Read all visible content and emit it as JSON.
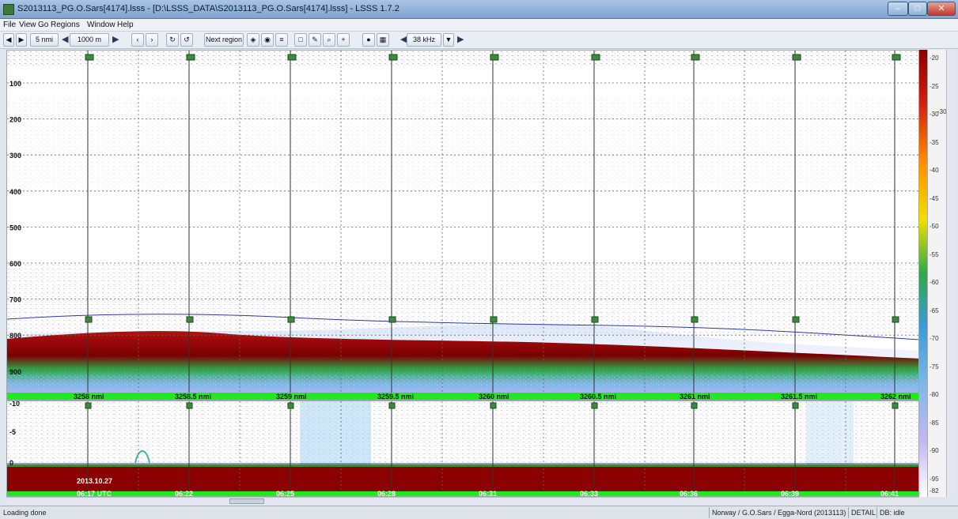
{
  "window": {
    "title": "S2013113_PG.O.Sars[4174].lsss - [D:\\LSSS_DATA\\S2013113_PG.O.Sars[4174].lsss] - LSSS 1.7.2"
  },
  "menu": [
    "File",
    "View",
    "Go",
    "Regions",
    "Window",
    "Help"
  ],
  "toolbar": {
    "distance": "5 nmi",
    "range": "1000 m",
    "next_region": "Next region",
    "frequency": "38 kHz"
  },
  "depth_ticks": [
    "100",
    "200",
    "300",
    "400",
    "500",
    "600",
    "700",
    "800",
    "900"
  ],
  "distance_ticks": [
    "3258 nmi",
    "3258.5 nmi",
    "3259 nmi",
    "3259.5 nmi",
    "3260 nmi",
    "3260.5 nmi",
    "3261 nmi",
    "3261.5 nmi",
    "3262 nmi"
  ],
  "bottom_ticks": [
    "-10",
    "-5",
    "0"
  ],
  "date_label": "2013.10.27",
  "time_ticks": [
    "06:17 UTC",
    "06:22",
    "06:25",
    "06:28",
    "06:31",
    "06:33",
    "06:36",
    "06:39",
    "06:41"
  ],
  "colorbar_labels": [
    "-20",
    "-25",
    "-30",
    "-35",
    "-40",
    "-45",
    "-50",
    "-55",
    "-60",
    "-65",
    "-70",
    "-75",
    "-80",
    "-85",
    "-90",
    "-95"
  ],
  "colorbar_extra": [
    "-30",
    "-82"
  ],
  "colors": {
    "bottom_red": "#8b0000",
    "green_layer": "#2ea84a",
    "scatter": "#9a88d8",
    "line": "#2b3a9a"
  },
  "status": {
    "left": "Loading done",
    "cruise": "Norway / G.O.Sars / Egga-Nord (2013113)",
    "mode": "DETAIL",
    "db": "DB: idle"
  }
}
